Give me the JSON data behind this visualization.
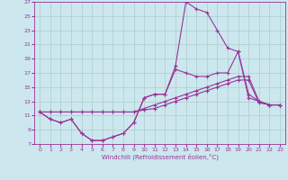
{
  "xlabel": "Windchill (Refroidissement éolien,°C)",
  "bg_color": "#cce8ee",
  "grid_color": "#aacccc",
  "line_color": "#993399",
  "xlim": [
    -0.5,
    23.5
  ],
  "ylim": [
    7,
    27
  ],
  "xticks": [
    0,
    1,
    2,
    3,
    4,
    5,
    6,
    7,
    8,
    9,
    10,
    11,
    12,
    13,
    14,
    15,
    16,
    17,
    18,
    19,
    20,
    21,
    22,
    23
  ],
  "yticks": [
    7,
    9,
    11,
    13,
    15,
    17,
    19,
    21,
    23,
    25,
    27
  ],
  "series": [
    [
      11.5,
      10.5,
      10.0,
      10.5,
      8.5,
      7.5,
      7.5,
      8.0,
      8.5,
      10.0,
      13.5,
      14.0,
      14.0,
      18.0,
      27.0,
      26.0,
      25.5,
      23.0,
      20.5,
      20.0,
      14.0,
      13.0,
      12.5,
      12.5
    ],
    [
      11.5,
      10.5,
      10.0,
      10.5,
      8.5,
      7.5,
      7.5,
      8.0,
      8.5,
      10.0,
      13.5,
      14.0,
      14.0,
      17.5,
      17.0,
      16.5,
      16.5,
      17.0,
      17.0,
      20.0,
      13.5,
      13.0,
      12.5,
      12.5
    ],
    [
      11.5,
      11.5,
      11.5,
      11.5,
      11.5,
      11.5,
      11.5,
      11.5,
      11.5,
      11.5,
      12.0,
      12.5,
      13.0,
      13.5,
      14.0,
      14.5,
      15.0,
      15.5,
      16.0,
      16.5,
      16.5,
      13.0,
      12.5,
      12.5
    ],
    [
      11.5,
      11.5,
      11.5,
      11.5,
      11.5,
      11.5,
      11.5,
      11.5,
      11.5,
      11.5,
      11.8,
      12.0,
      12.5,
      13.0,
      13.5,
      14.0,
      14.5,
      15.0,
      15.5,
      16.0,
      16.0,
      12.8,
      12.5,
      12.5
    ]
  ]
}
